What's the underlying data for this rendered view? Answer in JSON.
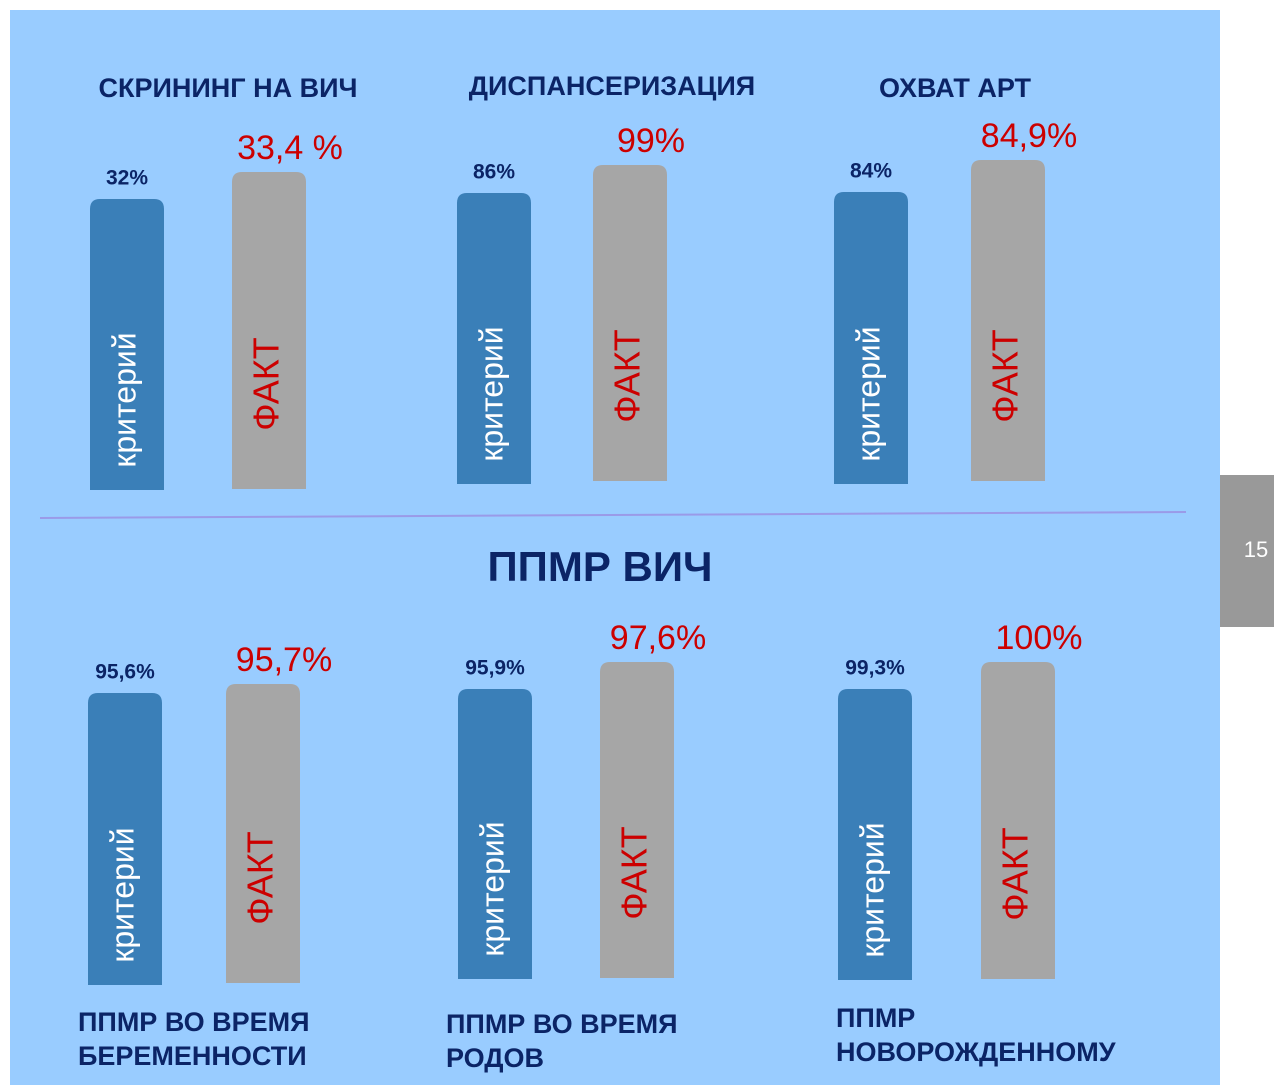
{
  "top_panels": [
    {
      "title": [
        "СКРИНИНГ НА ВИЧ"
      ],
      "criterion": "32%",
      "fact": "33,4 %"
    },
    {
      "title": [
        "ДИСПАНСЕРИЗАЦИЯ"
      ],
      "criterion": "86%",
      "fact": "99%"
    },
    {
      "title": [
        "ОХВАТ АРТ"
      ],
      "criterion": "84%",
      "fact": "84,9%"
    }
  ],
  "section_title": "ППМР ВИЧ",
  "bottom_panels": [
    {
      "title": [
        "ППМР ВО ВРЕМЯ",
        "БЕРЕМЕННОСТИ"
      ],
      "criterion": "95,6%",
      "fact": "95,7%"
    },
    {
      "title": [
        "ППМР ВО ВРЕМЯ",
        "РОДОВ"
      ],
      "criterion": "95,9%",
      "fact": "97,6%"
    },
    {
      "title": [
        "ППМР",
        "НОВОРОЖДЕННОМУ"
      ],
      "criterion": "99,3%",
      "fact": "100%"
    }
  ],
  "bar_labels": {
    "criterion": "критерий",
    "fact": "ФАКТ"
  },
  "page_number": "15"
}
